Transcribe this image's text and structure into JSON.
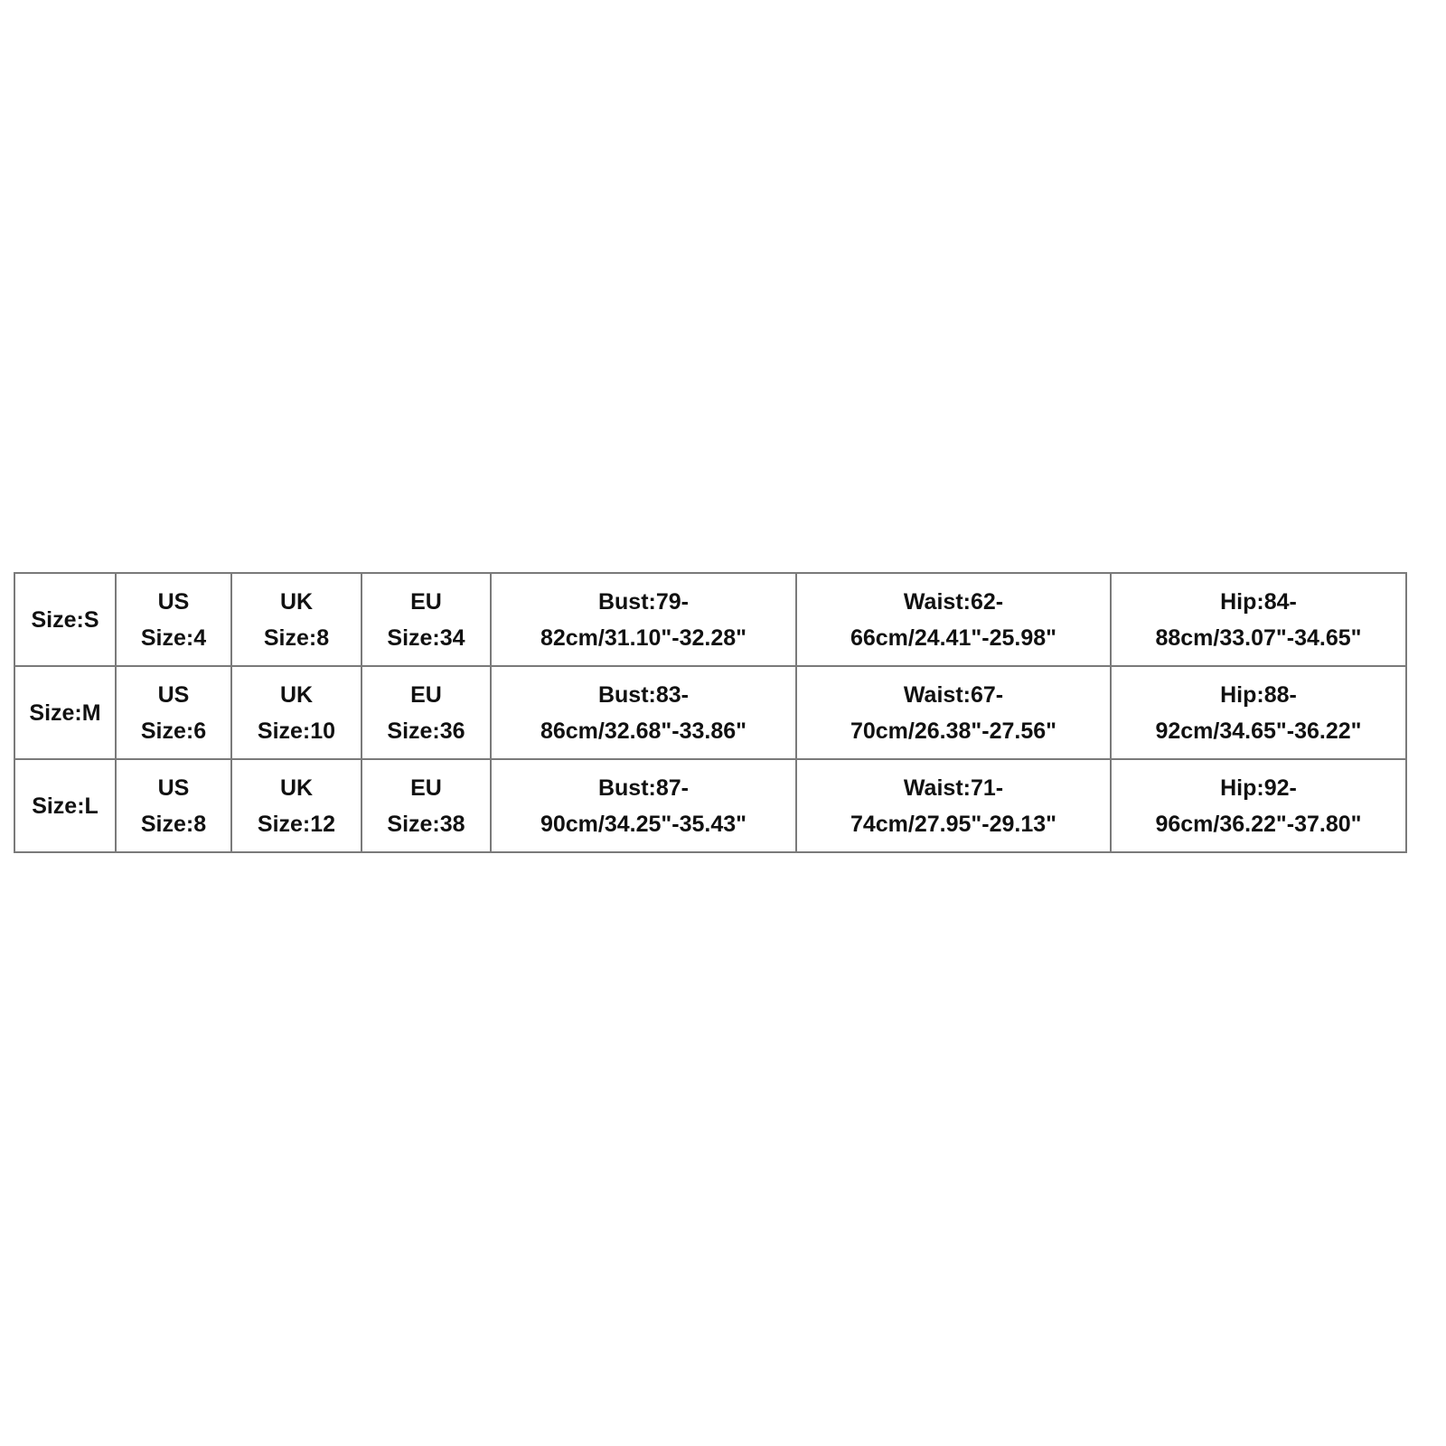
{
  "size_chart": {
    "rows": [
      {
        "size": "Size:S",
        "cells": [
          [
            "US",
            "Size:4"
          ],
          [
            "UK",
            "Size:8"
          ],
          [
            "EU",
            "Size:34"
          ],
          [
            "Bust:79-",
            "82cm/31.10\"-32.28\""
          ],
          [
            "Waist:62-",
            "66cm/24.41\"-25.98\""
          ],
          [
            "Hip:84-",
            "88cm/33.07\"-34.65\""
          ]
        ]
      },
      {
        "size": "Size:M",
        "cells": [
          [
            "US",
            "Size:6"
          ],
          [
            "UK",
            "Size:10"
          ],
          [
            "EU",
            "Size:36"
          ],
          [
            "Bust:83-",
            "86cm/32.68\"-33.86\""
          ],
          [
            "Waist:67-",
            "70cm/26.38\"-27.56\""
          ],
          [
            "Hip:88-",
            "92cm/34.65\"-36.22\""
          ]
        ]
      },
      {
        "size": "Size:L",
        "cells": [
          [
            "US",
            "Size:8"
          ],
          [
            "UK",
            "Size:12"
          ],
          [
            "EU",
            "Size:38"
          ],
          [
            "Bust:87-",
            "90cm/34.25\"-35.43\""
          ],
          [
            "Waist:71-",
            "74cm/27.95\"-29.13\""
          ],
          [
            "Hip:92-",
            "96cm/36.22\"-37.80\""
          ]
        ]
      }
    ]
  }
}
